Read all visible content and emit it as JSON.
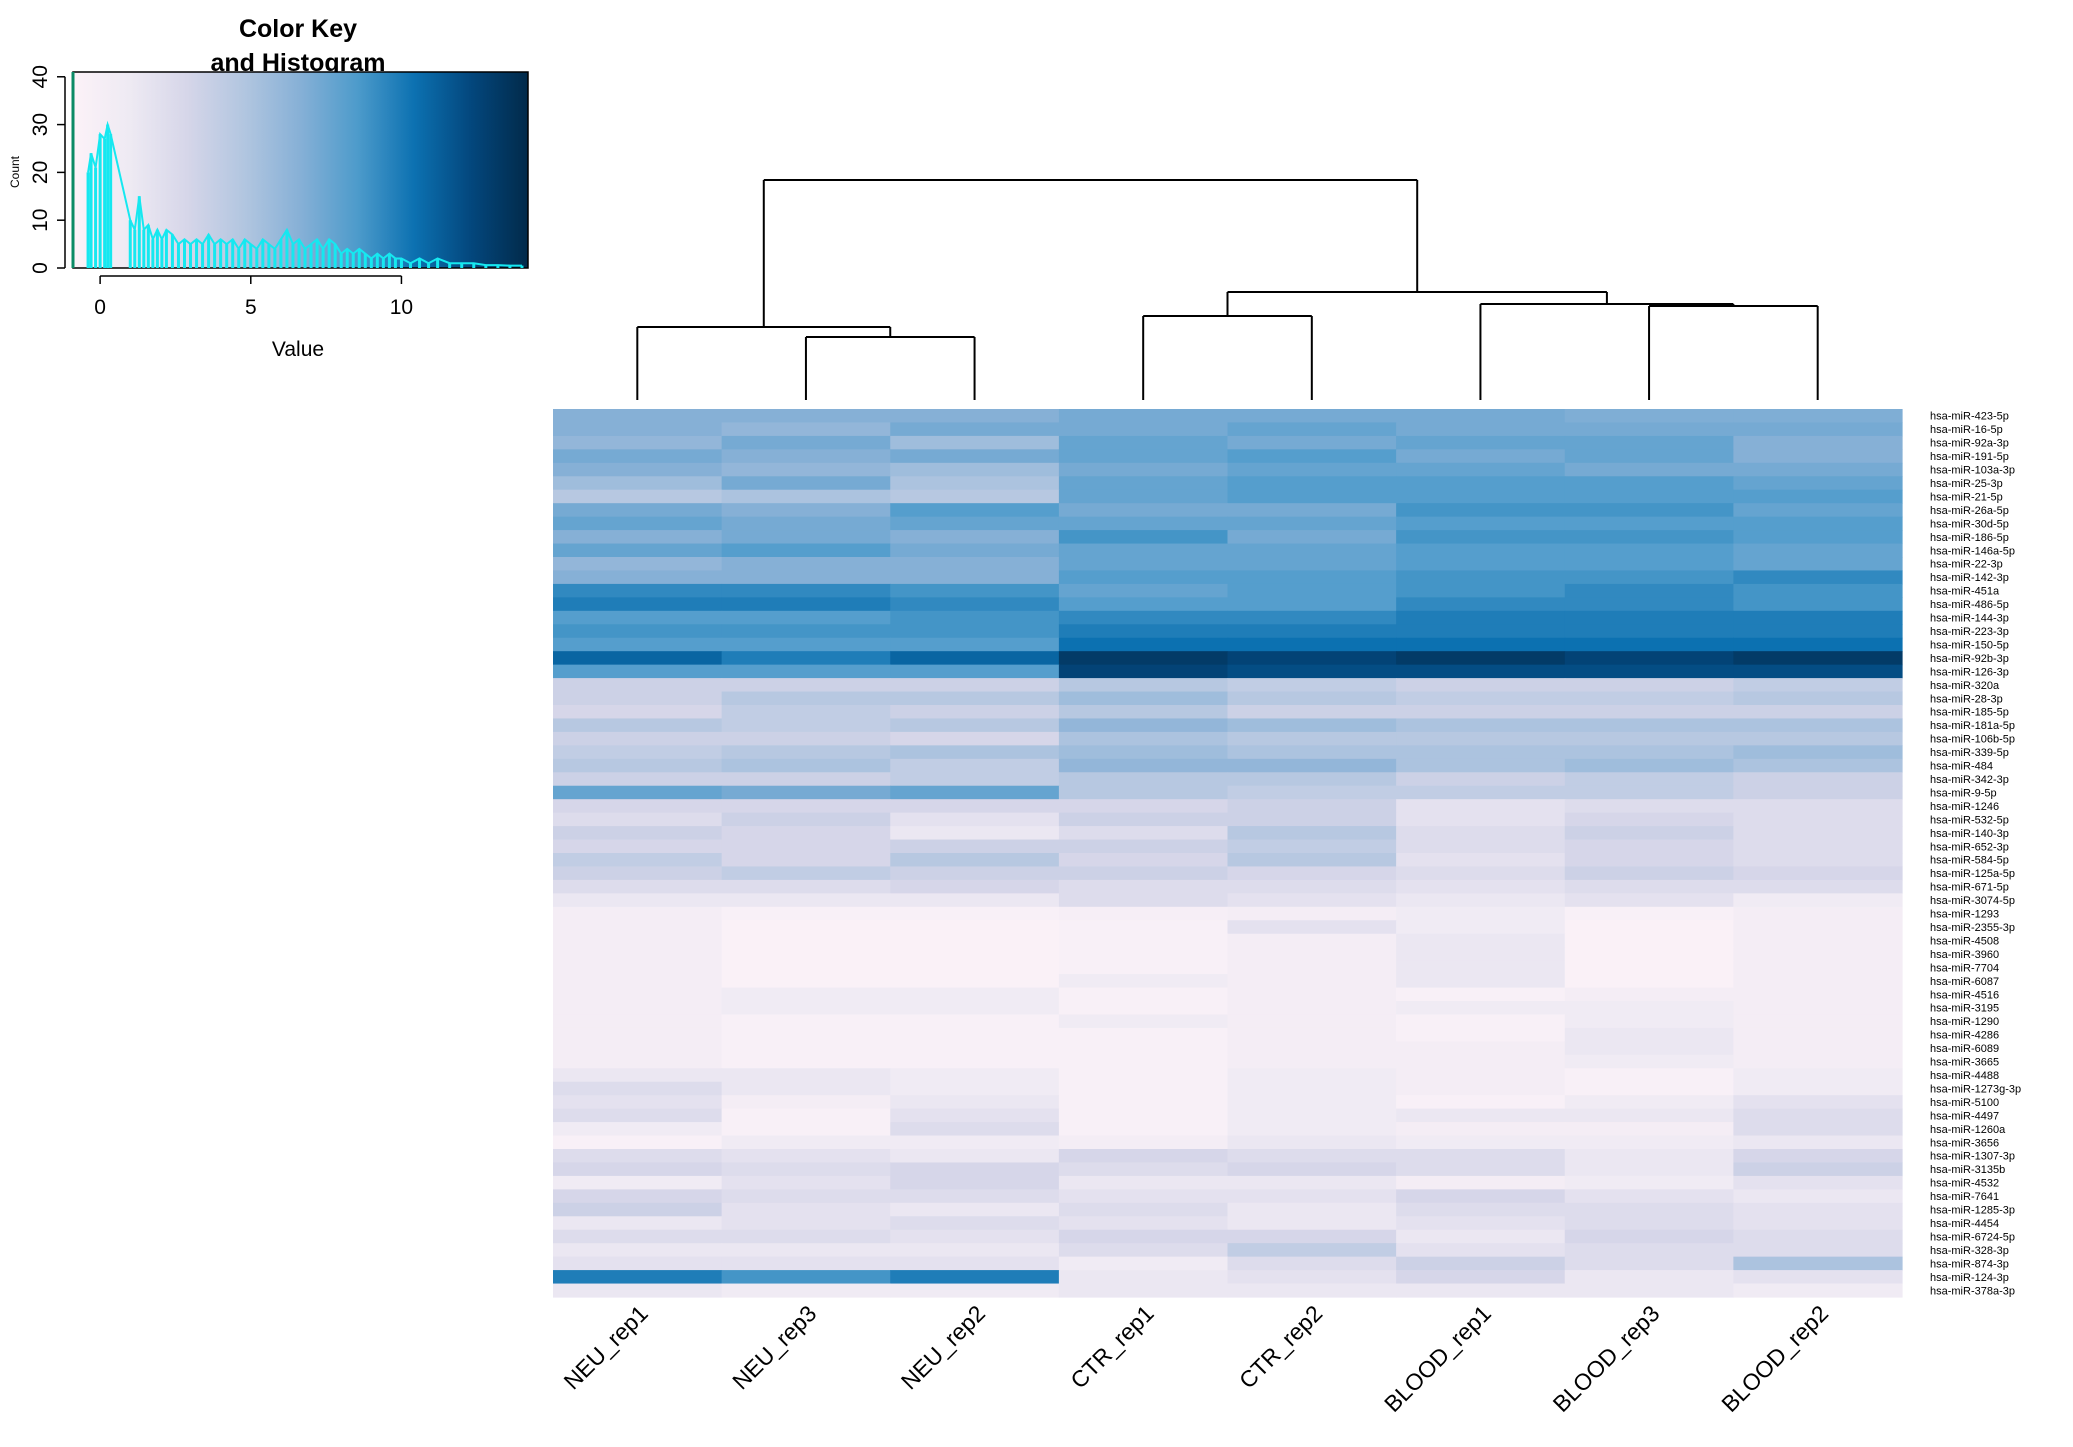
{
  "colors": {
    "ramp": [
      "#fcf2f8",
      "#eeeaf3",
      "#d6d6e9",
      "#b2c6e0",
      "#86b0d6",
      "#4d9bcb",
      "#0c71b1",
      "#03477d",
      "#022a4a"
    ],
    "histogram": "#16e8f0",
    "key_axis": "#0b8a66"
  },
  "chart_data": [
    {
      "type": "histogram",
      "name": "color-key",
      "title_line1": "Color Key",
      "title_line2": "and Histogram",
      "xlabel": "Value",
      "ylabel": "Count",
      "xlim": [
        -0.9,
        14.2
      ],
      "ylim": [
        0,
        41
      ],
      "xticks": [
        0,
        5,
        10
      ],
      "yticks": [
        0,
        10,
        20,
        30,
        40
      ],
      "bins": [
        [
          -0.4,
          20
        ],
        [
          -0.3,
          24
        ],
        [
          -0.15,
          21
        ],
        [
          0.0,
          28
        ],
        [
          0.15,
          27
        ],
        [
          0.25,
          30
        ],
        [
          0.35,
          28
        ],
        [
          1.0,
          10
        ],
        [
          1.15,
          8
        ],
        [
          1.3,
          15
        ],
        [
          1.45,
          8
        ],
        [
          1.6,
          9
        ],
        [
          1.75,
          6
        ],
        [
          1.9,
          8
        ],
        [
          2.05,
          6
        ],
        [
          2.2,
          8
        ],
        [
          2.4,
          7
        ],
        [
          2.6,
          5
        ],
        [
          2.8,
          6
        ],
        [
          3.0,
          5
        ],
        [
          3.2,
          6
        ],
        [
          3.4,
          5
        ],
        [
          3.6,
          7
        ],
        [
          3.8,
          5
        ],
        [
          4.0,
          6
        ],
        [
          4.2,
          5
        ],
        [
          4.4,
          6
        ],
        [
          4.6,
          4
        ],
        [
          4.8,
          6
        ],
        [
          5.0,
          5
        ],
        [
          5.2,
          4
        ],
        [
          5.4,
          6
        ],
        [
          5.6,
          5
        ],
        [
          5.8,
          4
        ],
        [
          6.0,
          6
        ],
        [
          6.2,
          8
        ],
        [
          6.4,
          5
        ],
        [
          6.6,
          6
        ],
        [
          6.8,
          4
        ],
        [
          7.0,
          5
        ],
        [
          7.2,
          6
        ],
        [
          7.4,
          4
        ],
        [
          7.6,
          6
        ],
        [
          7.8,
          5
        ],
        [
          8.0,
          3
        ],
        [
          8.2,
          4
        ],
        [
          8.4,
          3
        ],
        [
          8.6,
          4
        ],
        [
          8.8,
          3
        ],
        [
          9.0,
          2
        ],
        [
          9.2,
          3
        ],
        [
          9.4,
          2
        ],
        [
          9.6,
          3
        ],
        [
          9.8,
          2
        ],
        [
          10.0,
          2
        ],
        [
          10.3,
          1
        ],
        [
          10.6,
          2
        ],
        [
          10.9,
          1
        ],
        [
          11.2,
          2
        ],
        [
          11.6,
          1
        ],
        [
          12.0,
          1
        ],
        [
          12.4,
          1
        ],
        [
          12.8,
          0.6
        ],
        [
          13.2,
          0.6
        ],
        [
          13.6,
          0.5
        ],
        [
          14.0,
          0.5
        ]
      ]
    },
    {
      "type": "heatmap",
      "name": "mirna-heatmap",
      "columns": [
        "NEU_rep1",
        "NEU_rep3",
        "NEU_rep2",
        "CTR_rep1",
        "CTR_rep2",
        "BLOOD_rep1",
        "BLOOD_rep3",
        "BLOOD_rep2"
      ],
      "value_range": [
        0,
        14
      ],
      "rows": [
        [
          7,
          7,
          7,
          7.5,
          7.5,
          7.5,
          7.2,
          7.2
        ],
        [
          7,
          6.5,
          7.5,
          7.5,
          8,
          7.5,
          7.5,
          7.5
        ],
        [
          6.5,
          7.5,
          6,
          8,
          7.5,
          8,
          8,
          7
        ],
        [
          7.5,
          7,
          7.5,
          8,
          8.5,
          7.5,
          8,
          7
        ],
        [
          7,
          6.5,
          6,
          7.5,
          8,
          8,
          7.5,
          7.5
        ],
        [
          6,
          7.5,
          5.5,
          8,
          8.5,
          8.5,
          8.5,
          8
        ],
        [
          5,
          5.5,
          5,
          8,
          8.5,
          8.5,
          8.5,
          8.5
        ],
        [
          7.5,
          7,
          8.5,
          7.5,
          7.5,
          9,
          9,
          8
        ],
        [
          8,
          7.5,
          8,
          8,
          8,
          8.5,
          8.5,
          8.5
        ],
        [
          7,
          7.5,
          7,
          9,
          7.5,
          9,
          9,
          8.5
        ],
        [
          8,
          8.5,
          7.5,
          8,
          8,
          8.5,
          8.5,
          8
        ],
        [
          6.5,
          7,
          7,
          8,
          8,
          8.5,
          8.5,
          8
        ],
        [
          7,
          7,
          7,
          8.5,
          8.5,
          9,
          9,
          9.5
        ],
        [
          9.5,
          9.5,
          9,
          8,
          8.5,
          9,
          9.5,
          9
        ],
        [
          10,
          10,
          9.5,
          8.5,
          8.5,
          9.5,
          9.5,
          9
        ],
        [
          8.5,
          8.5,
          9,
          9.5,
          9.5,
          10,
          10,
          10
        ],
        [
          9,
          9,
          9,
          10,
          10,
          10,
          10,
          10
        ],
        [
          8.5,
          8.5,
          8.5,
          10.5,
          10.5,
          10.5,
          10.5,
          10.5
        ],
        [
          11,
          10,
          11,
          13,
          12.5,
          13,
          12.5,
          13
        ],
        [
          8.5,
          8.5,
          8.5,
          12.5,
          12,
          12,
          12,
          12
        ],
        [
          4,
          4,
          4,
          5,
          4.5,
          4,
          4,
          4.5
        ],
        [
          4,
          5,
          5,
          6,
          5,
          4.5,
          4.5,
          5
        ],
        [
          3.5,
          4.5,
          4,
          5,
          4,
          4,
          4,
          4
        ],
        [
          5,
          4.5,
          5,
          6.5,
          6,
          5.5,
          5.5,
          5.5
        ],
        [
          4,
          4,
          3.5,
          5.5,
          5,
          5,
          5,
          5
        ],
        [
          4.5,
          5,
          5.5,
          6,
          5.5,
          5.5,
          5.5,
          6
        ],
        [
          5,
          5.5,
          4.5,
          6.5,
          6.5,
          5.5,
          6,
          5.5
        ],
        [
          4,
          4,
          4.5,
          5,
          5,
          4,
          4.5,
          4
        ],
        [
          8,
          7.5,
          8,
          5,
          4.5,
          4.5,
          4.5,
          4
        ],
        [
          3.5,
          3.5,
          3.5,
          3.5,
          4,
          2.5,
          3,
          3
        ],
        [
          3,
          4,
          2.5,
          4,
          4,
          2.5,
          3.5,
          3
        ],
        [
          4,
          3.5,
          2,
          3,
          5,
          3,
          4,
          3
        ],
        [
          3.5,
          3.5,
          4,
          4,
          4.5,
          3,
          3.5,
          3
        ],
        [
          4.5,
          3.5,
          5,
          3.5,
          5,
          2.5,
          3.5,
          3
        ],
        [
          4,
          4.5,
          4,
          4,
          3.5,
          3,
          4,
          3.5
        ],
        [
          3,
          3,
          3.5,
          3,
          3,
          2.5,
          3,
          3
        ],
        [
          2,
          2,
          2,
          3,
          2.5,
          2,
          2.5,
          1.5
        ],
        [
          1,
          0.5,
          0.5,
          0.8,
          1,
          1.5,
          0.5,
          1
        ],
        [
          1,
          0.3,
          0.3,
          0.5,
          2.5,
          1.5,
          0.3,
          1
        ],
        [
          1,
          0.3,
          0.3,
          0.5,
          1,
          2,
          0.3,
          1
        ],
        [
          1,
          0.3,
          0.3,
          0.5,
          1,
          2,
          0.3,
          1
        ],
        [
          1,
          0.3,
          0.3,
          0.5,
          1,
          2,
          0.3,
          1
        ],
        [
          1,
          0.3,
          0.3,
          1.5,
          1,
          2,
          0.3,
          1
        ],
        [
          1,
          1.5,
          1.5,
          0.5,
          1,
          0.5,
          1,
          1
        ],
        [
          1,
          1.5,
          1.5,
          0.5,
          1,
          1.5,
          1.5,
          1
        ],
        [
          1,
          0.5,
          0.5,
          1.5,
          1,
          0.5,
          1.5,
          1
        ],
        [
          1,
          0.5,
          0.5,
          0.5,
          1,
          0.5,
          2,
          1
        ],
        [
          1,
          0.5,
          0.5,
          0.5,
          1,
          1,
          2,
          1
        ],
        [
          1,
          0.5,
          0.5,
          0.5,
          1,
          1,
          1.5,
          1
        ],
        [
          2,
          2,
          1.5,
          0.5,
          1.5,
          1,
          0.5,
          1.5
        ],
        [
          3,
          2,
          1.5,
          0.5,
          1.5,
          1,
          0.5,
          1.5
        ],
        [
          2.5,
          1,
          2,
          0.5,
          1.5,
          0.5,
          1.5,
          2.5
        ],
        [
          3,
          0.5,
          2.5,
          0.5,
          1.5,
          2,
          2,
          3
        ],
        [
          1.5,
          0.5,
          3,
          0.5,
          1.5,
          1,
          1,
          3
        ],
        [
          0.5,
          1.5,
          1.5,
          1,
          2,
          1.5,
          1.5,
          2
        ],
        [
          3,
          2.5,
          2,
          3.5,
          3,
          3,
          2,
          3.5
        ],
        [
          3.5,
          3,
          3.5,
          3,
          3.5,
          3,
          2,
          4
        ],
        [
          1.5,
          2.5,
          3.5,
          2,
          2,
          1,
          1.5,
          2.5
        ],
        [
          3.5,
          3,
          3,
          2.5,
          2.5,
          3.5,
          2.5,
          2
        ],
        [
          4,
          2.5,
          2,
          3,
          2,
          3,
          3,
          2.5
        ],
        [
          2,
          2.5,
          3,
          2.5,
          2,
          2.5,
          3,
          2.5
        ],
        [
          3,
          3,
          2.5,
          3.5,
          3.5,
          2,
          3.5,
          3
        ],
        [
          2,
          2,
          2,
          3,
          4.5,
          2.5,
          3,
          3
        ],
        [
          2.5,
          2.5,
          2.5,
          1.5,
          3,
          4,
          3,
          5.5
        ],
        [
          10,
          9,
          10,
          2,
          2.5,
          3.5,
          2,
          2.5
        ],
        [
          2,
          1.5,
          1.5,
          2,
          2,
          2,
          2,
          1.5
        ]
      ],
      "row_labels": [
        "hsa-miR-423-5p",
        "hsa-miR-16-5p",
        "hsa-miR-92a-3p",
        "hsa-miR-191-5p",
        "hsa-miR-103a-3p",
        "hsa-miR-25-3p",
        "hsa-miR-21-5p",
        "hsa-miR-26a-5p",
        "hsa-miR-30d-5p",
        "hsa-miR-186-5p",
        "hsa-miR-146a-5p",
        "hsa-miR-22-3p",
        "hsa-miR-142-3p",
        "hsa-miR-451a",
        "hsa-miR-486-5p",
        "hsa-miR-144-3p",
        "hsa-miR-223-3p",
        "hsa-miR-150-5p",
        "hsa-miR-92b-3p",
        "hsa-miR-126-3p",
        "hsa-miR-320a",
        "hsa-miR-28-3p",
        "hsa-miR-185-5p",
        "hsa-miR-181a-5p",
        "hsa-miR-106b-5p",
        "hsa-miR-339-5p",
        "hsa-miR-484",
        "hsa-miR-342-3p",
        "hsa-miR-9-5p",
        "hsa-miR-1246",
        "hsa-miR-532-5p",
        "hsa-miR-140-3p",
        "hsa-miR-652-3p",
        "hsa-miR-584-5p",
        "hsa-miR-125a-5p",
        "hsa-miR-671-5p",
        "hsa-miR-3074-5p",
        "hsa-miR-1293",
        "hsa-miR-2355-3p",
        "hsa-miR-4508",
        "hsa-miR-3960",
        "hsa-miR-7704",
        "hsa-miR-6087",
        "hsa-miR-4516",
        "hsa-miR-3195",
        "hsa-miR-1290",
        "hsa-miR-4286",
        "hsa-miR-6089",
        "hsa-miR-3665",
        "hsa-miR-4488",
        "hsa-miR-1273g-3p",
        "hsa-miR-5100",
        "hsa-miR-4497",
        "hsa-miR-1260a",
        "hsa-miR-3656",
        "hsa-miR-1307-3p",
        "hsa-miR-3135b",
        "hsa-miR-4532",
        "hsa-miR-7641",
        "hsa-miR-1285-3p",
        "hsa-miR-4454",
        "hsa-miR-6724-5p",
        "hsa-miR-328-3p",
        "hsa-miR-874-3p",
        "hsa-miR-124-3p",
        "hsa-miR-378a-3p"
      ]
    }
  ]
}
